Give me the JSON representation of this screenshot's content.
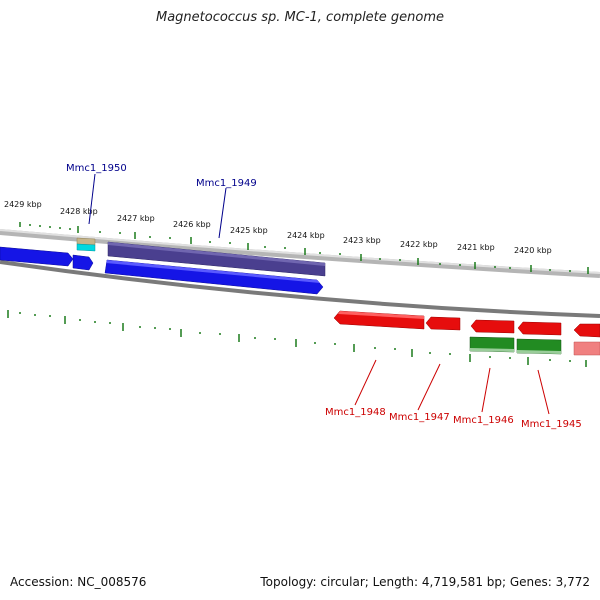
{
  "title": "Magnetococcus sp. MC-1, complete genome",
  "footer": {
    "accession": "Accession: NC_008576",
    "stats": "Topology: circular; Length: 4,719,581 bp; Genes: 3,772"
  },
  "ticks": [
    "2429 kbp",
    "2428 kbp",
    "2427 kbp",
    "2426 kbp",
    "2425 kbp",
    "2424 kbp",
    "2423 kbp",
    "2422 kbp",
    "2421 kbp",
    "2420 kbp"
  ],
  "gene_labels": {
    "top": [
      "Mmc1_1950",
      "Mmc1_1949"
    ],
    "bottom": [
      "Mmc1_1948",
      "Mmc1_1947",
      "Mmc1_1946",
      "Mmc1_1945"
    ]
  },
  "colors": {
    "forward_cds": "#1515e6",
    "forward_gene": "#4a3f8f",
    "reverse_cds": "#e60d0d",
    "reverse_gene": "#228b22",
    "rna": "#00d8e0",
    "tick": "#1a7a1a",
    "backbone": "#808080",
    "top_label": "#00008b",
    "bottom_label": "#cc0000"
  }
}
